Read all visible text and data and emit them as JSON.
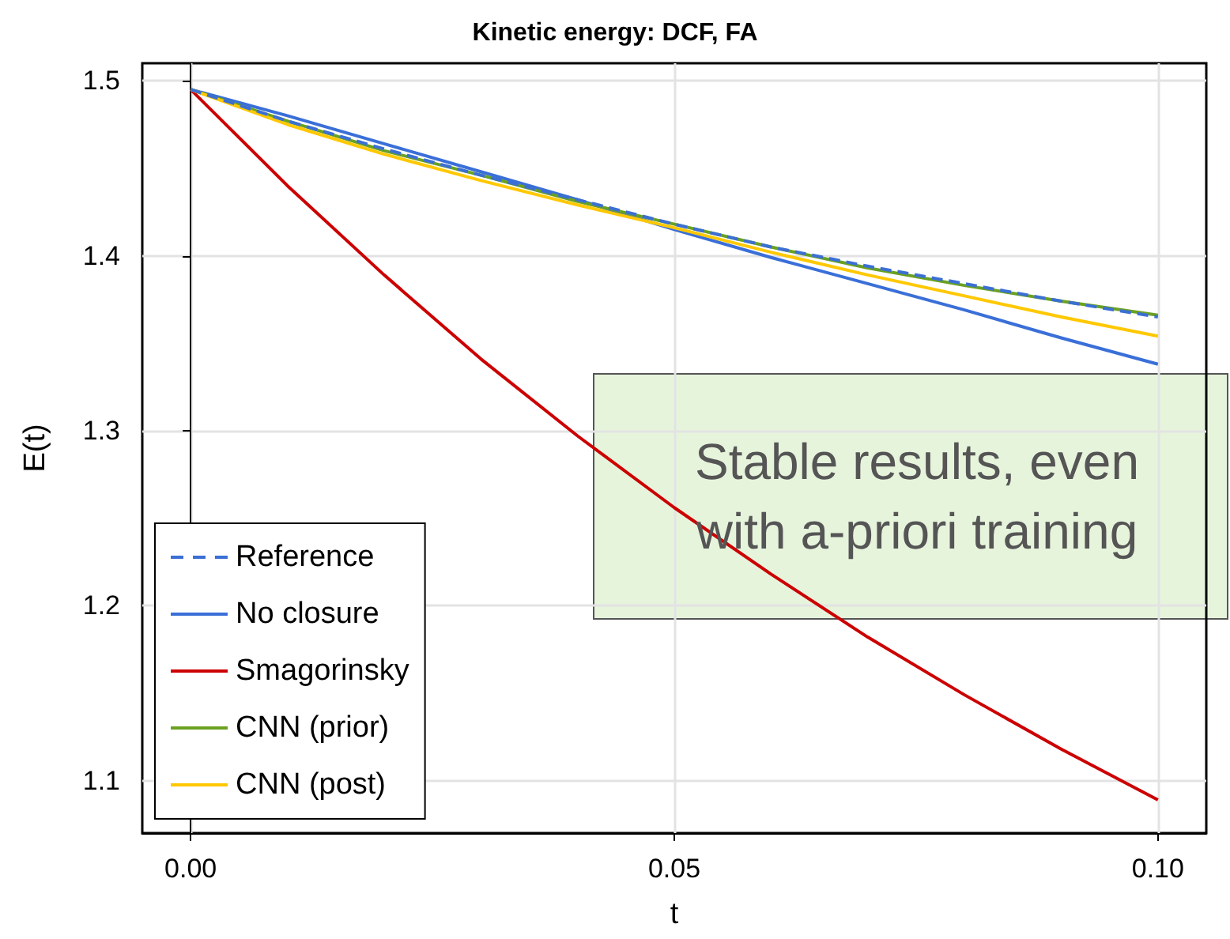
{
  "chart_data": {
    "type": "line",
    "title": "Kinetic energy: DCF, FA",
    "xlabel": "t",
    "ylabel": "E(t)",
    "x": [
      0,
      0.01,
      0.02,
      0.03,
      0.04,
      0.05,
      0.06,
      0.07,
      0.08,
      0.09,
      0.1
    ],
    "series": [
      {
        "name": "Reference",
        "color": "#3b6fd4",
        "line_style": "dashed",
        "values": [
          1.495,
          1.477,
          1.461,
          1.446,
          1.432,
          1.418,
          1.405,
          1.394,
          1.384,
          1.374,
          1.365
        ]
      },
      {
        "name": "No closure",
        "color": "#3a6fd8",
        "values": [
          1.495,
          1.48,
          1.464,
          1.448,
          1.432,
          1.415,
          1.399,
          1.384,
          1.369,
          1.353,
          1.338
        ]
      },
      {
        "name": "Smagorinsky",
        "color": "#cc0000",
        "values": [
          1.495,
          1.44,
          1.389,
          1.341,
          1.297,
          1.256,
          1.218,
          1.182,
          1.149,
          1.118,
          1.089
        ]
      },
      {
        "name": "CNN (prior)",
        "color": "#6aa121",
        "values": [
          1.495,
          1.477,
          1.46,
          1.446,
          1.431,
          1.418,
          1.405,
          1.393,
          1.383,
          1.374,
          1.366
        ]
      },
      {
        "name": "CNN (post)",
        "color": "#ffc800",
        "values": [
          1.495,
          1.475,
          1.458,
          1.443,
          1.429,
          1.416,
          1.402,
          1.389,
          1.377,
          1.365,
          1.354
        ]
      }
    ],
    "xlim": [
      -0.005,
      0.105
    ],
    "xticks": [
      {
        "value": 0,
        "label": "0.00"
      },
      {
        "value": 0.05,
        "label": "0.05"
      },
      {
        "value": 0.1,
        "label": "0.10"
      }
    ],
    "ylim": [
      1.07,
      1.51
    ],
    "yticks": [
      1.1,
      1.2,
      1.3,
      1.4,
      1.5
    ],
    "grid": true,
    "legend": "bottom left",
    "marker": "none",
    "line_style": "solid",
    "annotations": [
      "Stable results, even\nwith a-priori training"
    ]
  }
}
